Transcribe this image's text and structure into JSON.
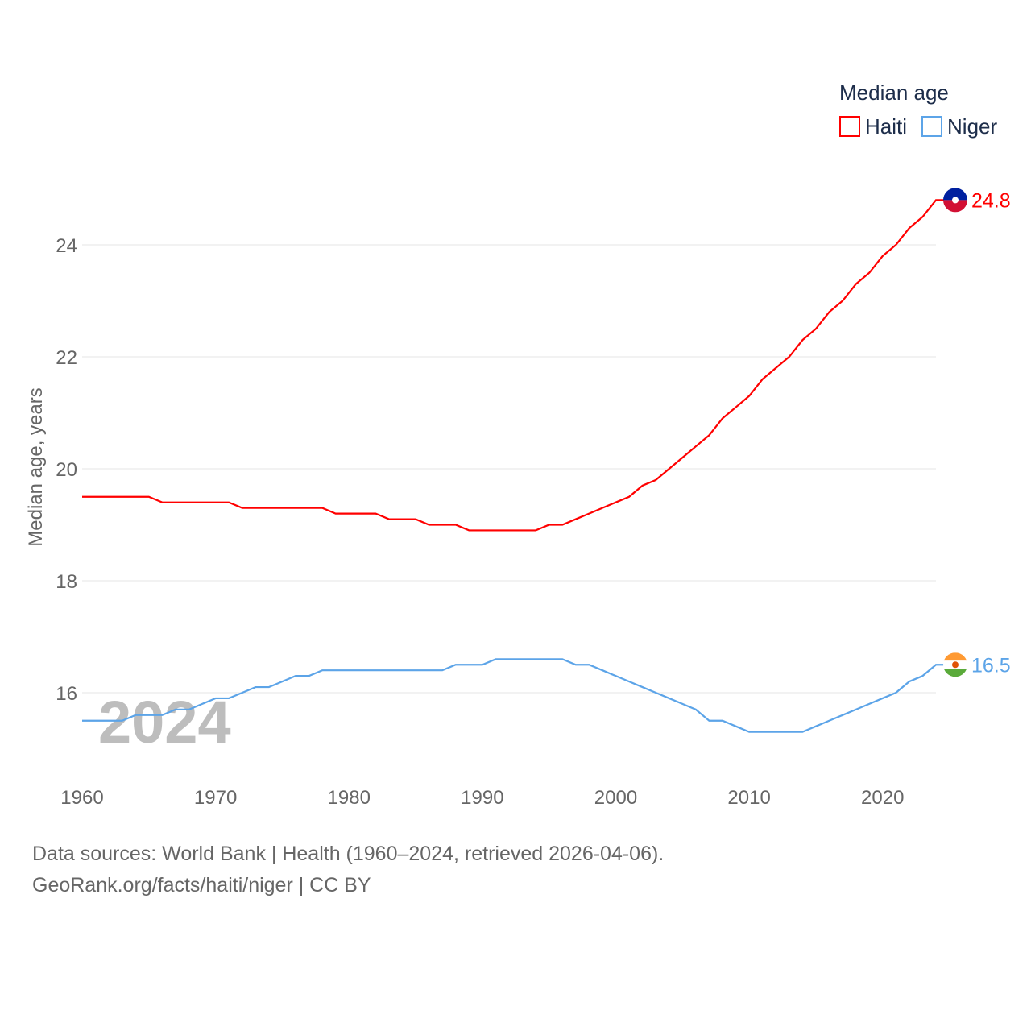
{
  "chart_data": {
    "type": "line",
    "title": "Median age",
    "ylabel": "Median age, years",
    "xlabel": "",
    "ylim": [
      15.0,
      25.0
    ],
    "xlim": [
      1960,
      2024
    ],
    "yticks": [
      16,
      18,
      20,
      22,
      24
    ],
    "xticks": [
      1960,
      1970,
      1980,
      1990,
      2000,
      2010,
      2020
    ],
    "grid": true,
    "legend_position": "top-right",
    "year_watermark": "2024",
    "x": [
      1960,
      1961,
      1962,
      1963,
      1964,
      1965,
      1966,
      1967,
      1968,
      1969,
      1970,
      1971,
      1972,
      1973,
      1974,
      1975,
      1976,
      1977,
      1978,
      1979,
      1980,
      1981,
      1982,
      1983,
      1984,
      1985,
      1986,
      1987,
      1988,
      1989,
      1990,
      1991,
      1992,
      1993,
      1994,
      1995,
      1996,
      1997,
      1998,
      1999,
      2000,
      2001,
      2002,
      2003,
      2004,
      2005,
      2006,
      2007,
      2008,
      2009,
      2010,
      2011,
      2012,
      2013,
      2014,
      2015,
      2016,
      2017,
      2018,
      2019,
      2020,
      2021,
      2022,
      2023,
      2024
    ],
    "series": [
      {
        "name": "Haiti",
        "color": "#ff0000",
        "end_label": "24.8",
        "values": [
          19.5,
          19.5,
          19.5,
          19.5,
          19.5,
          19.5,
          19.4,
          19.4,
          19.4,
          19.4,
          19.4,
          19.4,
          19.3,
          19.3,
          19.3,
          19.3,
          19.3,
          19.3,
          19.3,
          19.2,
          19.2,
          19.2,
          19.2,
          19.1,
          19.1,
          19.1,
          19.0,
          19.0,
          19.0,
          18.9,
          18.9,
          18.9,
          18.9,
          18.9,
          18.9,
          19.0,
          19.0,
          19.1,
          19.2,
          19.3,
          19.4,
          19.5,
          19.7,
          19.8,
          20.0,
          20.2,
          20.4,
          20.6,
          20.9,
          21.1,
          21.3,
          21.6,
          21.8,
          22.0,
          22.3,
          22.5,
          22.8,
          23.0,
          23.3,
          23.5,
          23.8,
          24.0,
          24.3,
          24.5,
          24.8
        ]
      },
      {
        "name": "Niger",
        "color": "#5ca4e8",
        "end_label": "16.5",
        "values": [
          15.5,
          15.5,
          15.5,
          15.5,
          15.6,
          15.6,
          15.6,
          15.7,
          15.7,
          15.8,
          15.9,
          15.9,
          16.0,
          16.1,
          16.1,
          16.2,
          16.3,
          16.3,
          16.4,
          16.4,
          16.4,
          16.4,
          16.4,
          16.4,
          16.4,
          16.4,
          16.4,
          16.4,
          16.5,
          16.5,
          16.5,
          16.6,
          16.6,
          16.6,
          16.6,
          16.6,
          16.6,
          16.5,
          16.5,
          16.4,
          16.3,
          16.2,
          16.1,
          16.0,
          15.9,
          15.8,
          15.7,
          15.5,
          15.5,
          15.4,
          15.3,
          15.3,
          15.3,
          15.3,
          15.3,
          15.4,
          15.5,
          15.6,
          15.7,
          15.8,
          15.9,
          16.0,
          16.2,
          16.3,
          16.5
        ]
      }
    ]
  },
  "footer": {
    "line1": "Data sources: World Bank | Health (1960–2024, retrieved 2026-04-06).",
    "line2": "GeoRank.org/facts/haiti/niger | CC BY"
  }
}
